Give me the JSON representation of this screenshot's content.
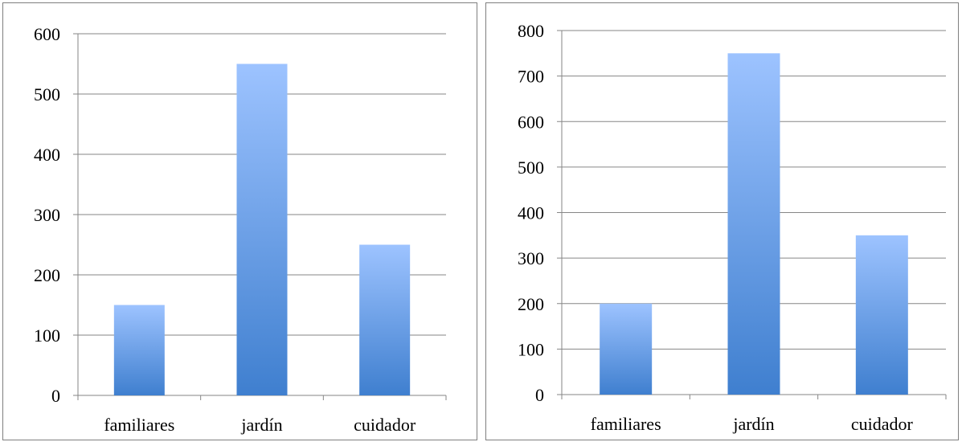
{
  "chart_data": [
    {
      "type": "bar",
      "categories": [
        "familiares",
        "jardín",
        "cuidador"
      ],
      "values": [
        150,
        550,
        250
      ],
      "ylim": [
        0,
        600
      ],
      "yticks": [
        0,
        100,
        200,
        300,
        400,
        500,
        600
      ],
      "grid": true,
      "legend": "none",
      "title": "",
      "xlabel": "",
      "ylabel": ""
    },
    {
      "type": "bar",
      "categories": [
        "familiares",
        "jardín",
        "cuidador"
      ],
      "values": [
        200,
        750,
        350
      ],
      "ylim": [
        0,
        800
      ],
      "yticks": [
        0,
        100,
        200,
        300,
        400,
        500,
        600,
        700,
        800
      ],
      "grid": true,
      "legend": "none",
      "title": "",
      "xlabel": "",
      "ylabel": ""
    }
  ],
  "colors": {
    "bar_top": "#9dc3ff",
    "bar_bottom": "#3f7fcf",
    "gridline": "#868686"
  }
}
